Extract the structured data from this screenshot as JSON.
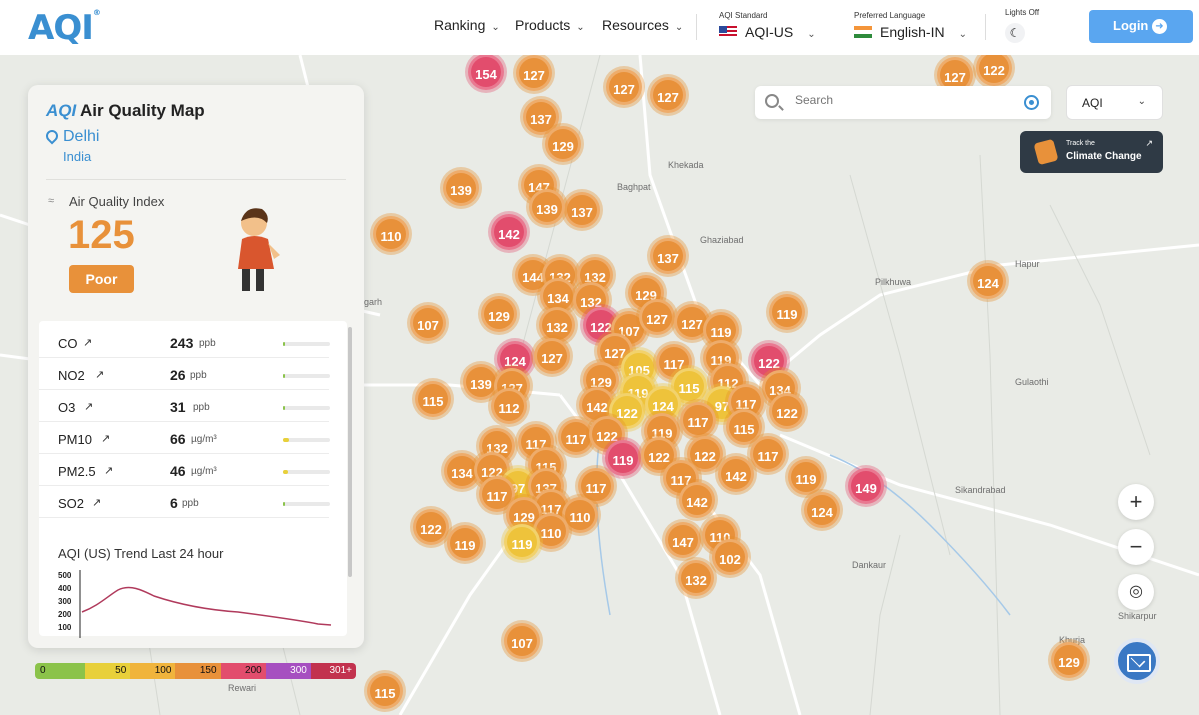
{
  "nav": {
    "logo": "AQI",
    "items": [
      {
        "label": "Ranking"
      },
      {
        "label": "Products"
      },
      {
        "label": "Resources"
      }
    ],
    "standard_label": "AQI Standard",
    "standard_value": "AQI-US",
    "language_label": "Preferred Language",
    "language_value": "English-IN",
    "lights_label": "Lights Off",
    "login_label": "Login"
  },
  "search": {
    "placeholder": "Search"
  },
  "map_layer_select": "AQI",
  "climate_banner": {
    "line1": "Track the",
    "line2": "Climate Change"
  },
  "panel": {
    "logo": "AQI",
    "title": "Air Quality Map",
    "city": "Delhi",
    "country": "India",
    "aqi_label": "Air Quality Index",
    "aqi_value": "125",
    "status": "Poor",
    "pollutants": [
      {
        "name": "CO",
        "value": "243",
        "unit": "ppb",
        "level": 0.02,
        "color": "#8bc34a"
      },
      {
        "name": "NO2",
        "value": "26",
        "unit": "ppb",
        "level": 0.03,
        "color": "#8bc34a"
      },
      {
        "name": "O3",
        "value": "31",
        "unit": "ppb",
        "level": 0.02,
        "color": "#8bc34a"
      },
      {
        "name": "PM10",
        "value": "66",
        "unit": "µg/m³",
        "level": 0.12,
        "color": "#e8d03a"
      },
      {
        "name": "PM2.5",
        "value": "46",
        "unit": "µg/m³",
        "level": 0.1,
        "color": "#e8d03a"
      },
      {
        "name": "SO2",
        "value": "6",
        "unit": "ppb",
        "level": 0.01,
        "color": "#8bc34a"
      }
    ],
    "trend_title": "AQI (US) Trend Last 24 hour",
    "trend_yticks": [
      "500",
      "400",
      "300",
      "200",
      "100"
    ]
  },
  "legend": [
    {
      "label": "0",
      "color": "#8bc34a"
    },
    {
      "label": "50",
      "color": "#e8d03a"
    },
    {
      "label": "100",
      "color": "#f0b43c"
    },
    {
      "label": "150",
      "color": "#e8913a"
    },
    {
      "label": "200",
      "color": "#e24d6d"
    },
    {
      "label": "300",
      "color": "#a64fc0"
    },
    {
      "label": "301+",
      "color": "#c2324e"
    }
  ],
  "places": [
    {
      "name": "Khekada"
    },
    {
      "name": "Baghpat"
    },
    {
      "name": "Pilkhuwa"
    },
    {
      "name": "Hapur"
    },
    {
      "name": "Gulaothi"
    },
    {
      "name": "Sikandrabad"
    },
    {
      "name": "Dankaur"
    },
    {
      "name": "Shikarpur"
    },
    {
      "name": "Khurja"
    },
    {
      "name": "Rewari"
    },
    {
      "name": "Bahadurgarh"
    },
    {
      "name": "Ghaziabad"
    }
  ],
  "markers": [
    "154",
    "127",
    "127",
    "127",
    "127",
    "122",
    "137",
    "129",
    "147",
    "139",
    "137",
    "139",
    "142",
    "110",
    "137",
    "144",
    "132",
    "132",
    "134",
    "132",
    "129",
    "129",
    "107",
    "132",
    "122",
    "107",
    "127",
    "127",
    "119",
    "119",
    "124",
    "127",
    "127",
    "105",
    "117",
    "119",
    "122",
    "139",
    "127",
    "129",
    "119",
    "115",
    "112",
    "134",
    "115",
    "112",
    "142",
    "122",
    "124",
    "97",
    "117",
    "122",
    "132",
    "117",
    "117",
    "122",
    "119",
    "115",
    "117",
    "122",
    "134",
    "122",
    "115",
    "117",
    "97",
    "117",
    "137",
    "117",
    "117",
    "119",
    "142",
    "119",
    "149",
    "124",
    "122",
    "122",
    "129",
    "117",
    "110",
    "119",
    "110",
    "142",
    "147",
    "110",
    "102",
    "119",
    "132",
    "107",
    "115",
    "129",
    "124"
  ]
}
